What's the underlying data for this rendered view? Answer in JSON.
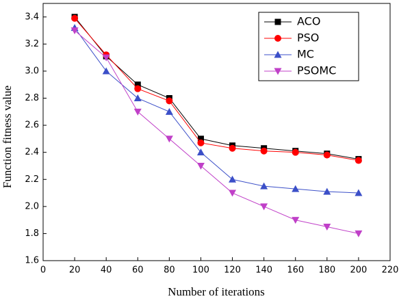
{
  "chart_data": {
    "type": "line",
    "x_label": "Number of iterations",
    "y_label": "Function fitness value",
    "x": [
      20,
      40,
      60,
      80,
      100,
      120,
      140,
      160,
      180,
      200
    ],
    "series": [
      {
        "name": "ACO",
        "color": "#000000",
        "marker": "square",
        "values": [
          3.4,
          3.11,
          2.9,
          2.8,
          2.5,
          2.45,
          2.43,
          2.41,
          2.39,
          2.35
        ]
      },
      {
        "name": "PSO",
        "color": "#ff0000",
        "marker": "circle",
        "values": [
          3.39,
          3.12,
          2.87,
          2.78,
          2.47,
          2.43,
          2.41,
          2.4,
          2.38,
          2.34
        ]
      },
      {
        "name": "MC",
        "color": "#3b4fc8",
        "marker": "triangle-up",
        "values": [
          3.32,
          3.0,
          2.8,
          2.7,
          2.4,
          2.2,
          2.15,
          2.13,
          2.11,
          2.1
        ]
      },
      {
        "name": "PSOMC",
        "color": "#c040c8",
        "marker": "triangle-down",
        "values": [
          3.3,
          3.1,
          2.7,
          2.5,
          2.3,
          2.1,
          2.0,
          1.9,
          1.85,
          1.8
        ]
      }
    ],
    "xlim": [
      0,
      220
    ],
    "xticks": [
      0,
      20,
      40,
      60,
      80,
      100,
      120,
      140,
      160,
      180,
      200,
      220
    ],
    "ylim": [
      1.6,
      3.5
    ],
    "yticks": [
      1.6,
      1.8,
      {
        "value": 2,
        "label": "2.0"
      },
      2.2,
      2.4,
      2.6,
      2.8,
      {
        "value": 3,
        "label": "3.0"
      },
      3.2,
      3.4
    ],
    "legend": "upper right"
  }
}
